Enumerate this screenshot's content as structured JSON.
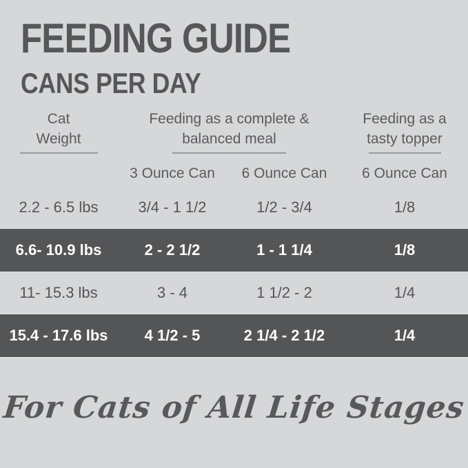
{
  "page": {
    "title": "FEEDING GUIDE",
    "subtitle": "CANS PER DAY",
    "footer_script": "For Cats of All Life Stages"
  },
  "table": {
    "column_groups": {
      "weight": {
        "line1": "Cat",
        "line2": "Weight"
      },
      "meal": {
        "line1": "Feeding as a complete &",
        "line2": "balanced meal"
      },
      "topper": {
        "line1": "Feeding as a",
        "line2": "tasty topper"
      }
    },
    "subheaders": {
      "can3": "3 Ounce Can",
      "can6": "6 Ounce Can",
      "topper6": "6 Ounce Can"
    },
    "rows": [
      {
        "weight": "2.2 - 6.5 lbs",
        "can3": "3/4 - 1 1/2",
        "can6": "1/2 - 3/4",
        "topper": "1/8",
        "highlighted": false
      },
      {
        "weight": "6.6- 10.9 lbs",
        "can3": "2 - 2 1/2",
        "can6": "1 - 1 1/4",
        "topper": "1/8",
        "highlighted": true
      },
      {
        "weight": "11- 15.3 lbs",
        "can3": "3 - 4",
        "can6": "1 1/2 - 2",
        "topper": "1/4",
        "highlighted": false
      },
      {
        "weight": "15.4 - 17.6 lbs",
        "can3": "4 1/2 - 5",
        "can6": "2 1/4 - 2 1/2",
        "topper": "1/4",
        "highlighted": true
      }
    ]
  },
  "colors": {
    "background": "#d6d7d8",
    "dark_band": "#545557",
    "text_dark": "#57585a",
    "text_light": "#fdfdfd",
    "rule": "#98999b"
  }
}
